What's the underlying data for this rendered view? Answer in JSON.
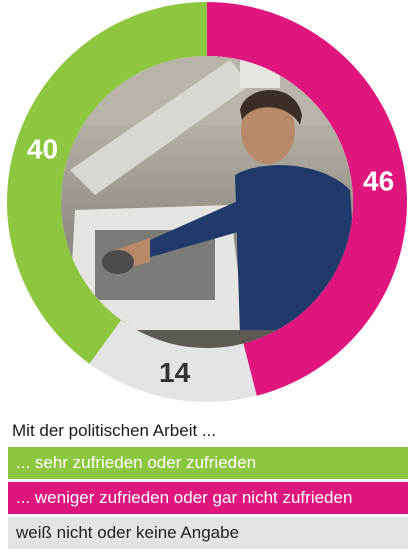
{
  "chart_data": {
    "type": "pie",
    "donut": true,
    "slices": [
      {
        "label": "... weniger zufrieden oder gar nicht zufrieden",
        "value": 46,
        "color": "#e0167f"
      },
      {
        "label": "weiß nicht oder keine Angabe",
        "value": 14,
        "color": "#e2e3e5"
      },
      {
        "label": "... sehr zufrieden oder zufrieden",
        "value": 40,
        "color": "#8dc63f"
      }
    ]
  },
  "legend": {
    "title": "Mit der politischen Arbeit ...",
    "items": [
      {
        "label": "... sehr zufrieden oder zufrieden",
        "color": "#8dc63f",
        "dark": false
      },
      {
        "label": "... weniger zufrieden oder gar nicht zufrieden",
        "color": "#e0167f",
        "dark": false
      },
      {
        "label": "weiß nicht oder keine Angabe",
        "color": "#e2e3e5",
        "dark": true
      }
    ]
  },
  "photo": {
    "description_icon": "factory-worker-photo"
  }
}
